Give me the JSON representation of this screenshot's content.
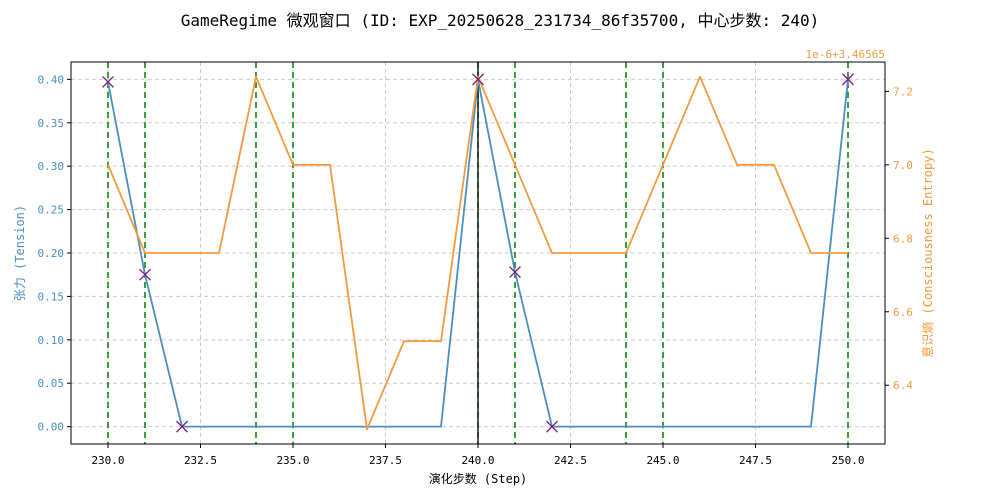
{
  "chart_data": {
    "type": "line",
    "title": "GameRegime 微观窗口 (ID: EXP_20250628_231734_86f35700, 中心步数: 240)",
    "xlabel": "演化步数 (Step)",
    "ylabel_left": "张力 (Tension)",
    "ylabel_right": "意识熵 (Consciousness Entropy)",
    "right_offset_text": "1e-6+3.46565",
    "xlim": [
      229.0,
      251.0
    ],
    "ylim_left": [
      -0.02,
      0.42
    ],
    "ylim_right": [
      6.24,
      7.28
    ],
    "x_ticks": [
      230.0,
      232.5,
      235.0,
      237.5,
      240.0,
      242.5,
      245.0,
      247.5,
      250.0
    ],
    "x_tick_labels": [
      "230.0",
      "232.5",
      "235.0",
      "237.5",
      "240.0",
      "242.5",
      "245.0",
      "247.5",
      "250.0"
    ],
    "left_ticks": [
      0.0,
      0.05,
      0.1,
      0.15,
      0.2,
      0.25,
      0.3,
      0.35,
      0.4
    ],
    "left_tick_labels": [
      "0.00",
      "0.05",
      "0.10",
      "0.15",
      "0.20",
      "0.25",
      "0.30",
      "0.35",
      "0.40"
    ],
    "right_ticks": [
      6.4,
      6.6,
      6.8,
      7.0,
      7.2
    ],
    "right_tick_labels": [
      "6.4",
      "6.6",
      "6.8",
      "7.0",
      "7.2"
    ],
    "grid": true,
    "series": [
      {
        "axis": "left",
        "color": "#4a8fc0",
        "x": [
          230,
          231,
          232,
          233,
          234,
          235,
          236,
          237,
          238,
          239,
          240,
          241,
          242,
          243,
          244,
          245,
          246,
          247,
          248,
          249,
          250
        ],
        "values": [
          0.397,
          0.175,
          0.0,
          0.0,
          0.0,
          0.0,
          0.0,
          0.0,
          0.0,
          0.0,
          0.4,
          0.178,
          0.0,
          0.0,
          0.0,
          0.0,
          0.0,
          0.0,
          0.0,
          0.0,
          0.4
        ]
      },
      {
        "axis": "right",
        "color": "#f29a3e",
        "x": [
          230,
          231,
          232,
          233,
          234,
          235,
          236,
          237,
          238,
          239,
          240,
          241,
          242,
          243,
          244,
          245,
          246,
          247,
          248,
          249,
          250
        ],
        "values": [
          7.0,
          6.76,
          6.76,
          6.76,
          7.24,
          7.0,
          7.0,
          6.28,
          6.52,
          6.52,
          7.24,
          7.0,
          6.76,
          6.76,
          6.76,
          7.0,
          7.24,
          7.0,
          7.0,
          6.76,
          6.76
        ]
      }
    ],
    "markers": {
      "symbol": "x",
      "color": "#7a1f7a",
      "x": [
        230,
        231,
        232,
        240,
        241,
        242,
        250
      ],
      "values": [
        0.397,
        0.175,
        0.0,
        0.4,
        0.178,
        0.0,
        0.4
      ]
    },
    "vlines_green": {
      "color": "#0a8a0a",
      "x": [
        230,
        231,
        234,
        235,
        240,
        241,
        244,
        245,
        250
      ]
    },
    "vline_center": {
      "color": "#111111",
      "x": 240
    }
  }
}
